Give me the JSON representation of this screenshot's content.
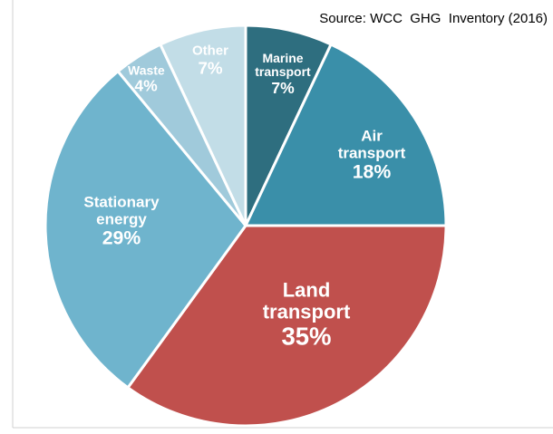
{
  "chart_data": {
    "type": "pie",
    "title": "Source: WCC  GHG  Inventory (2016)",
    "categories": [
      "Marine transport",
      "Air transport",
      "Land transport",
      "Stationary energy",
      "Waste",
      "Other"
    ],
    "values": [
      7,
      18,
      35,
      29,
      4,
      7
    ],
    "value_labels": [
      "7%",
      "18%",
      "35%",
      "29%",
      "4%",
      "7%"
    ],
    "colors": [
      "#2e6e7f",
      "#3a8fa9",
      "#c0504d",
      "#6fb4cd",
      "#a0cadb",
      "#c2dde7"
    ]
  }
}
